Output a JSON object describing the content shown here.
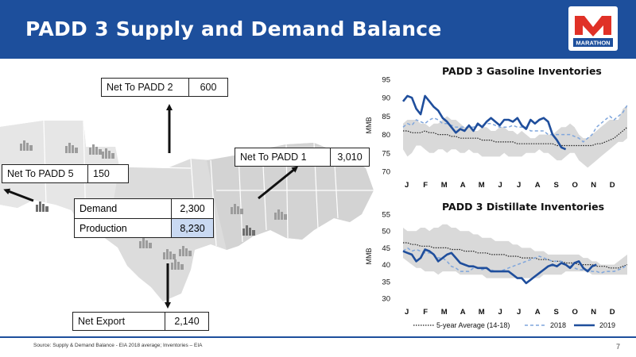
{
  "header": {
    "title": "PADD 3 Supply and Demand Balance",
    "logo_text": "MARATHON"
  },
  "flows": {
    "net_to_padd2": {
      "label": "Net To PADD 2",
      "value": "600"
    },
    "net_to_padd1": {
      "label": "Net To PADD 1",
      "value": "3,010"
    },
    "net_to_padd5": {
      "label": "Net To PADD 5",
      "value": "150"
    },
    "demand": {
      "label": "Demand",
      "value": "2,300"
    },
    "production": {
      "label": "Production",
      "value": "8,230"
    },
    "net_export": {
      "label": "Net Export",
      "value": "2,140"
    }
  },
  "legend": {
    "avg": "5-year Average (14-18)",
    "s2018": "2018",
    "s2019": "2019"
  },
  "footer": {
    "source": "Source: Supply & Demand Balance - EIA 2018 average; Inventories – EIA",
    "page": "7"
  },
  "colors": {
    "header": "#1d4f9c",
    "band": "#d9d9d9",
    "avg": "#222222",
    "s2018": "#7fa6dc",
    "s2019": "#1f4e9c"
  },
  "chart_data": [
    {
      "type": "line",
      "title": "PADD 3 Gasoline Inventories",
      "ylabel": "MMB",
      "ylim": [
        70,
        95
      ],
      "yticks": [
        70,
        75,
        80,
        85,
        90,
        95
      ],
      "xticklabels": [
        "J",
        "F",
        "M",
        "A",
        "M",
        "J",
        "J",
        "A",
        "S",
        "O",
        "N",
        "D"
      ],
      "n_weeks": 52,
      "band_upper": [
        83,
        84,
        84,
        84,
        83,
        83,
        82,
        83,
        83,
        84,
        85,
        84,
        84,
        83,
        82,
        82,
        81,
        81,
        82,
        82,
        81,
        81,
        82,
        82,
        81,
        81,
        80,
        81,
        80,
        79,
        79,
        80,
        80,
        80,
        80,
        81,
        82,
        82,
        83,
        82,
        80,
        79,
        79,
        80,
        81,
        82,
        83,
        84,
        84,
        84,
        87,
        88
      ],
      "band_lower": [
        76,
        74,
        75,
        77,
        77,
        76,
        75,
        75,
        76,
        76,
        75,
        76,
        76,
        75,
        75,
        76,
        75,
        75,
        74,
        74,
        74,
        74,
        74,
        75,
        74,
        74,
        74,
        74,
        75,
        75,
        75,
        76,
        75,
        75,
        74,
        73,
        73,
        74,
        75,
        75,
        73,
        72,
        71,
        72,
        73,
        74,
        75,
        76,
        77,
        78,
        78,
        79
      ],
      "series": [
        {
          "name": "5-year Average (14-18)",
          "values": [
            81,
            81,
            80.5,
            80.5,
            80.5,
            81,
            80.5,
            80.5,
            80,
            80,
            80,
            79.5,
            79.5,
            79,
            79,
            79,
            79,
            79,
            78.5,
            78.5,
            78.5,
            78,
            78,
            78,
            78,
            78,
            77.5,
            77.5,
            77.5,
            77.5,
            77.5,
            77.5,
            77.5,
            77.5,
            77.5,
            77,
            77,
            77,
            77,
            77,
            77,
            77,
            77,
            77,
            77.5,
            77.5,
            78,
            78.5,
            79,
            80,
            81,
            82
          ]
        },
        {
          "name": "2018",
          "values": [
            82,
            83,
            82.5,
            84,
            83.5,
            83,
            84,
            84.5,
            84,
            83,
            83,
            82.5,
            82,
            82,
            82,
            82,
            82,
            82.5,
            82.5,
            83,
            83,
            82.5,
            82,
            82,
            82,
            82.5,
            82,
            82,
            82,
            81,
            81,
            81,
            81,
            80,
            80,
            80,
            80,
            80,
            80,
            79.5,
            79,
            78,
            79,
            80,
            82,
            83,
            84,
            85,
            84,
            85,
            86,
            88
          ]
        },
        {
          "name": "2019",
          "values": [
            89,
            90.5,
            90,
            87,
            85.5,
            90.5,
            89,
            87.5,
            86.5,
            84.5,
            83.5,
            82,
            80.5,
            81.5,
            81,
            82.5,
            81,
            83,
            82,
            83.5,
            84.5,
            83.5,
            82.5,
            84,
            84,
            83.5,
            84.5,
            82.5,
            81.5,
            84,
            83,
            84,
            84.5,
            83.5,
            80,
            78.5,
            76.5,
            76
          ]
        }
      ]
    },
    {
      "type": "line",
      "title": "PADD 3 Distillate Inventories",
      "ylabel": "MMB",
      "ylim": [
        30,
        55
      ],
      "yticks": [
        30,
        35,
        40,
        45,
        50,
        55
      ],
      "xticklabels": [
        "J",
        "F",
        "M",
        "A",
        "M",
        "J",
        "J",
        "A",
        "S",
        "O",
        "N",
        "D"
      ],
      "n_weeks": 52,
      "band_upper": [
        51,
        50,
        50,
        50,
        51,
        51,
        50,
        51,
        51,
        52,
        52,
        51,
        51,
        50,
        50,
        50,
        49,
        49,
        48,
        48,
        48,
        47,
        47,
        47,
        47,
        46,
        46,
        45,
        45,
        45,
        44,
        44,
        44,
        43,
        43,
        43,
        43,
        43,
        43,
        43,
        43,
        42,
        42,
        41,
        41,
        40,
        40,
        40,
        40,
        41,
        42,
        43
      ],
      "band_lower": [
        42,
        41,
        40,
        39,
        39,
        38,
        38,
        38,
        37,
        38,
        38,
        38,
        38,
        37,
        37,
        37,
        37,
        37,
        37,
        36,
        36,
        36,
        36,
        36,
        36,
        36,
        36,
        36,
        36,
        36,
        36,
        36,
        37,
        37,
        37,
        37,
        37,
        38,
        38,
        38,
        38,
        38,
        38,
        37,
        37,
        37,
        37,
        37,
        37,
        37,
        37,
        37
      ],
      "series": [
        {
          "name": "5-year Average (14-18)",
          "values": [
            46.5,
            46.5,
            46,
            46,
            45.5,
            45.5,
            45.5,
            45,
            45,
            45,
            45,
            44.5,
            44.5,
            44.5,
            44,
            44,
            44,
            43.5,
            43.5,
            43.5,
            43,
            43,
            43,
            43,
            42.5,
            42.5,
            42.5,
            42,
            42,
            42,
            42,
            41.5,
            41.5,
            41.5,
            41,
            41,
            41,
            40.5,
            40.5,
            40.5,
            40,
            40,
            40,
            40,
            39.5,
            39.5,
            39.5,
            39,
            39,
            39,
            39.5,
            40
          ]
        },
        {
          "name": "2018",
          "values": [
            44,
            45,
            44,
            44.5,
            44,
            43.5,
            43.5,
            43,
            42,
            42,
            41,
            39.5,
            39,
            38,
            38,
            38,
            39,
            39,
            38.5,
            39,
            38.5,
            38,
            38,
            38.5,
            39,
            39.5,
            40,
            40.5,
            41,
            41.5,
            42,
            42.5,
            42,
            41.5,
            41,
            41,
            41,
            40,
            39.5,
            39,
            38.5,
            38.5,
            38.5,
            38,
            38,
            37.5,
            38,
            38,
            38,
            38.5,
            39,
            40
          ]
        },
        {
          "name": "2019",
          "values": [
            44,
            43.5,
            43,
            41,
            42,
            44.5,
            44,
            43,
            41,
            42,
            43,
            43.5,
            42,
            40.5,
            40,
            39.5,
            39.5,
            39,
            39,
            39,
            38,
            38,
            38,
            38,
            38,
            37,
            36,
            36,
            34.5,
            35.5,
            36.5,
            37.5,
            38.5,
            39.5,
            40,
            39.5,
            40.5,
            40,
            39,
            40.5,
            41,
            39,
            38,
            39.5,
            40
          ]
        }
      ]
    }
  ]
}
